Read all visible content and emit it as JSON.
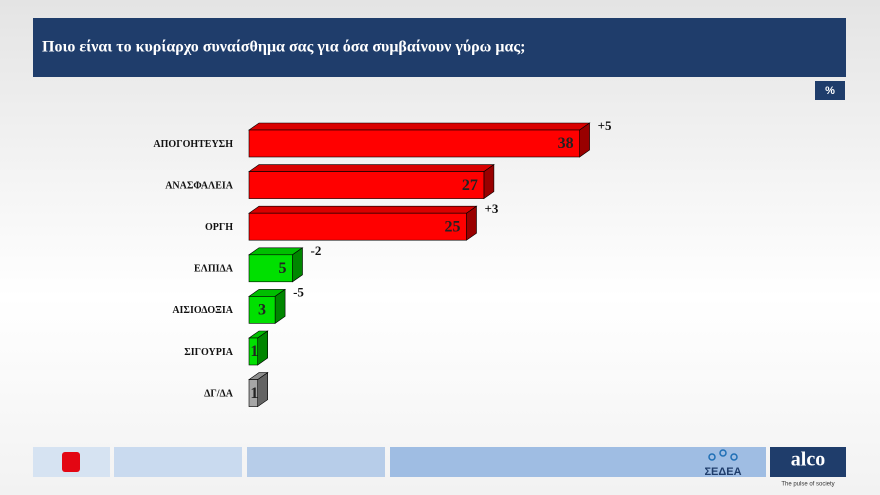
{
  "chart_data": {
    "type": "bar3d",
    "title": "Ποιο είναι το κυρίαρχο συναίσθημα σας για όσα συμβαίνουν γύρω μας;",
    "unit": "%",
    "categories": [
      "ΑΠΟΓΟΗΤΕΥΣΗ",
      "ΑΝΑΣΦΑΛΕΙΑ",
      "ΟΡΓΗ",
      "ΕΛΠΙΔΑ",
      "ΑΙΣΙΟΔΟΞΙΑ",
      "ΣΙΓΟΥΡΙΑ",
      "ΔΓ/ΔΑ"
    ],
    "values": [
      38,
      27,
      25,
      5,
      3,
      1,
      1
    ],
    "colors": [
      "#ff0000",
      "#ff0000",
      "#ff0000",
      "#00e000",
      "#00e000",
      "#00e000",
      "#a6a6a6"
    ],
    "annotations": [
      "+5",
      null,
      "+3",
      "-2",
      "-5",
      null,
      null
    ]
  },
  "footer": {
    "brand": "alco",
    "tagline": "The pulse of society",
    "partner": "ΣΕΔΕΑ"
  }
}
